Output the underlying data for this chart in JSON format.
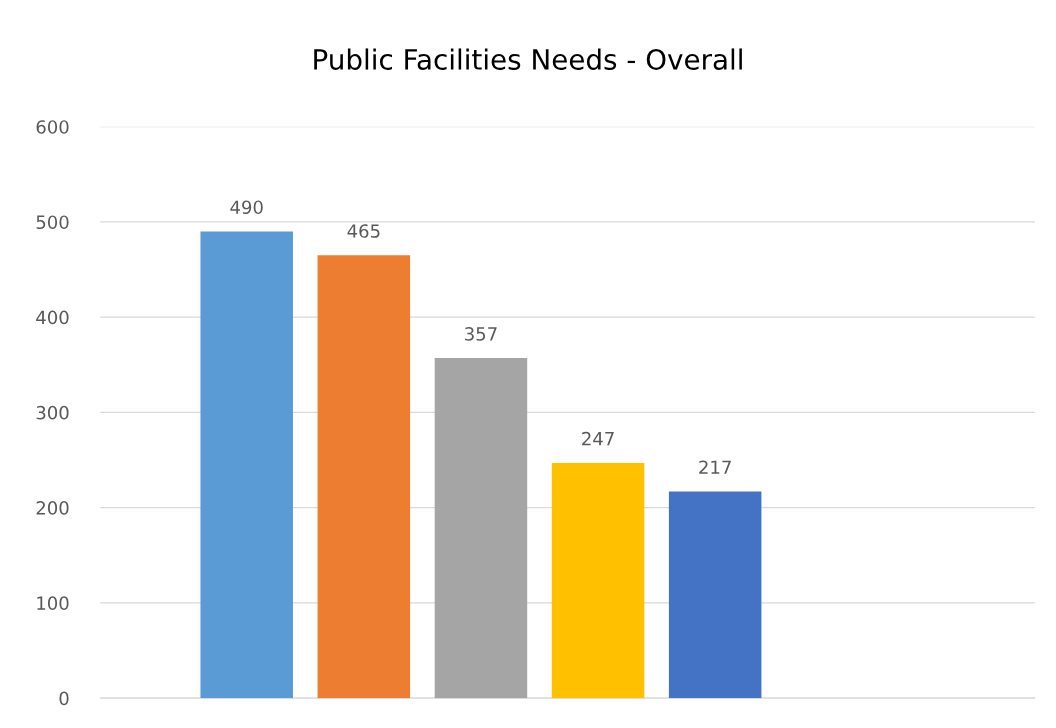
{
  "chart_data": {
    "type": "bar",
    "title": "Public Facilities Needs - Overall",
    "categories": [
      null,
      null,
      null,
      null,
      null
    ],
    "values": [
      490,
      465,
      357,
      247,
      217
    ],
    "colors": [
      "#5b9bd5",
      "#ed7d31",
      "#a5a5a5",
      "#ffc000",
      "#4472c4"
    ],
    "ylim": [
      0,
      600
    ],
    "yticks": [
      0,
      100,
      200,
      300,
      400,
      500,
      600
    ],
    "grid": "y",
    "data_labels": true
  }
}
